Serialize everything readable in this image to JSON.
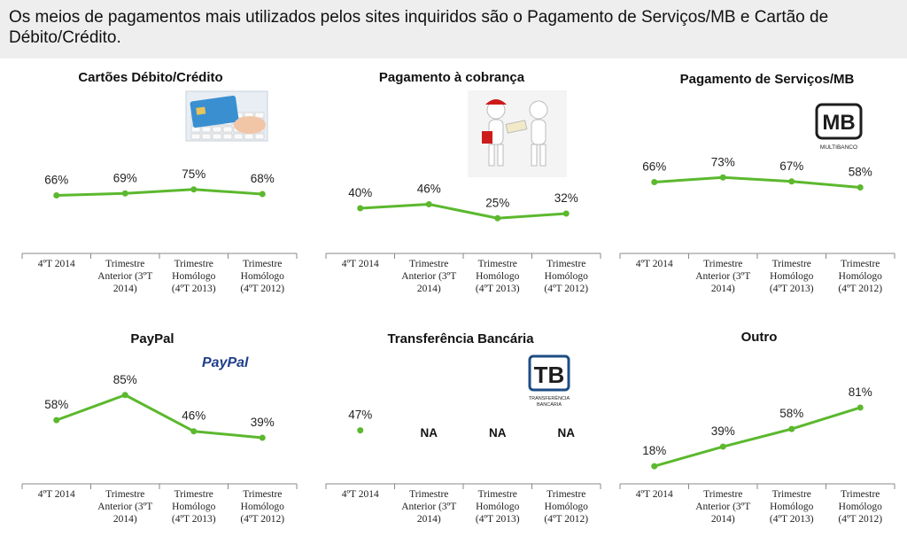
{
  "header": {
    "title": "Os meios de pagamentos mais utilizados pelos sites inquiridos são o Pagamento de Serviços/MB e Cartão de Débito/Crédito."
  },
  "colors": {
    "line": "#5cb82e",
    "header_bg": "#eeeeee"
  },
  "categories": [
    [
      "4ºT 2014"
    ],
    [
      "Trimestre",
      "Anterior (3ºT",
      "2014)"
    ],
    [
      "Trimestre",
      "Homólogo",
      "(4ºT 2013)"
    ],
    [
      "Trimestre",
      "Homólogo",
      "(4ºT 2012)"
    ]
  ],
  "chart_data": [
    {
      "type": "line",
      "title": "Cartões Débito/Crédito",
      "icon": "credit-card-icon",
      "values": [
        66,
        69,
        75,
        68
      ],
      "labels": [
        "66%",
        "69%",
        "75%",
        "68%"
      ]
    },
    {
      "type": "line",
      "title": "Pagamento à cobrança",
      "icon": "delivery-handover-icon",
      "values": [
        40,
        46,
        25,
        32
      ],
      "labels": [
        "40%",
        "46%",
        "25%",
        "32%"
      ]
    },
    {
      "type": "line",
      "title": "Pagamento de Serviços/MB",
      "icon": "multibanco-logo-icon",
      "logo_text": "MB",
      "logo_subtext": "MULTIBANCO",
      "values": [
        66,
        73,
        67,
        58
      ],
      "labels": [
        "66%",
        "73%",
        "67%",
        "58%"
      ]
    },
    {
      "type": "line",
      "title": "PayPal",
      "icon": "paypal-logo-icon",
      "logo_text": "PayPal",
      "values": [
        58,
        85,
        46,
        39
      ],
      "labels": [
        "58%",
        "85%",
        "46%",
        "39%"
      ]
    },
    {
      "type": "line",
      "title": "Transferência Bancária",
      "icon": "transferencia-bancaria-logo-icon",
      "logo_text": "TB",
      "logo_subtext": [
        "TRANSFERÊNCIA",
        "BANCÁRIA"
      ],
      "values": [
        47,
        null,
        null,
        null
      ],
      "labels": [
        "47%",
        "NA",
        "NA",
        "NA"
      ]
    },
    {
      "type": "line",
      "title": "Outro",
      "icon": "",
      "values": [
        18,
        39,
        58,
        81
      ],
      "labels": [
        "18%",
        "39%",
        "58%",
        "81%"
      ]
    }
  ]
}
